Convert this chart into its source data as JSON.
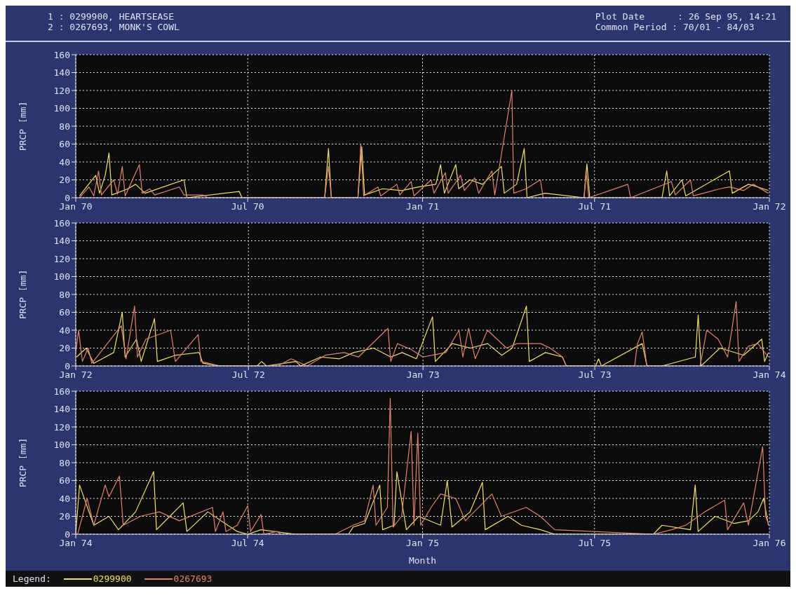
{
  "chart_data": [
    {
      "type": "line",
      "annotations": [
        "1 : 0299900, HEARTSEASE",
        "2 : 0267693, MONK'S COWL",
        "Plot Date      : 26 Sep 95, 14:21",
        "Common Period : 70/01 - 84/03"
      ],
      "ylabel": "PRCP [mm]",
      "ylim": [
        0,
        160
      ],
      "yticks": [
        0,
        20,
        40,
        60,
        80,
        100,
        120,
        140,
        160
      ],
      "xlim": [
        "1970-01-01",
        "1972-01-01"
      ],
      "xticks": [
        {
          "value": "1970-01-01",
          "label": "Jan 70"
        },
        {
          "value": "1970-07-01",
          "label": "Jul 70"
        },
        {
          "value": "1971-01-01",
          "label": "Jan 71"
        },
        {
          "value": "1971-07-01",
          "label": "Jul 71"
        },
        {
          "value": "1972-01-01",
          "label": "Jan 72"
        }
      ],
      "grid": true,
      "marker": "none",
      "line_style": "solid",
      "series": [
        {
          "color": "#f2e35a",
          "x": [
            "1970-01-05",
            "1970-01-22",
            "1970-01-26",
            "1970-02-01",
            "1970-02-05",
            "1970-02-08",
            "1970-02-25",
            "1970-03-05",
            "1970-03-15",
            "1970-04-25",
            "1970-04-28",
            "1970-06-22",
            "1970-06-25",
            "1970-09-20",
            "1970-09-24",
            "1970-09-27",
            "1970-10-25",
            "1970-10-29",
            "1970-11-01",
            "1970-11-20",
            "1970-12-10",
            "1970-12-28",
            "1971-01-15",
            "1971-01-20",
            "1971-01-24",
            "1971-02-05",
            "1971-02-08",
            "1971-02-20",
            "1971-03-05",
            "1971-03-25",
            "1971-03-28",
            "1971-04-10",
            "1971-04-18",
            "1971-04-21",
            "1971-05-10",
            "1971-06-20",
            "1971-06-23",
            "1971-06-26",
            "1971-09-10",
            "1971-09-15",
            "1971-09-18",
            "1971-10-01",
            "1971-10-05",
            "1971-11-20",
            "1971-11-23",
            "1971-12-10",
            "1971-12-20",
            "1971-12-31"
          ],
          "values": [
            2,
            25,
            5,
            25,
            50,
            3,
            10,
            15,
            5,
            20,
            0,
            7,
            0,
            0,
            55,
            0,
            0,
            57,
            3,
            10,
            8,
            12,
            15,
            37,
            5,
            37,
            10,
            20,
            15,
            35,
            5,
            15,
            55,
            0,
            5,
            0,
            38,
            0,
            0,
            30,
            2,
            20,
            2,
            30,
            5,
            15,
            12,
            8
          ]
        },
        {
          "color": "#e8806a",
          "x": [
            "1970-01-05",
            "1970-01-15",
            "1970-01-20",
            "1970-01-25",
            "1970-01-28",
            "1970-02-10",
            "1970-02-14",
            "1970-02-19",
            "1970-02-22",
            "1970-03-09",
            "1970-03-12",
            "1970-03-20",
            "1970-03-25",
            "1970-04-20",
            "1970-04-25",
            "1970-05-15",
            "1970-05-20",
            "1970-09-20",
            "1970-09-24",
            "1970-09-27",
            "1970-10-25",
            "1970-10-28",
            "1970-10-31",
            "1970-11-15",
            "1970-11-18",
            "1970-12-05",
            "1970-12-08",
            "1970-12-20",
            "1970-12-23",
            "1971-01-10",
            "1971-01-13",
            "1971-01-25",
            "1971-01-28",
            "1971-02-10",
            "1971-02-14",
            "1971-02-25",
            "1971-03-01",
            "1971-03-15",
            "1971-03-18",
            "1971-04-05",
            "1971-04-07",
            "1971-04-20",
            "1971-05-05",
            "1971-05-08",
            "1971-06-20",
            "1971-06-22",
            "1971-06-25",
            "1971-08-05",
            "1971-08-08",
            "1971-09-20",
            "1971-09-24",
            "1971-10-10",
            "1971-10-13",
            "1971-11-10",
            "1971-11-20",
            "1971-12-05",
            "1971-12-15",
            "1971-12-31"
          ],
          "values": [
            0,
            12,
            2,
            30,
            3,
            20,
            4,
            35,
            2,
            37,
            5,
            10,
            3,
            12,
            3,
            3,
            0,
            0,
            35,
            0,
            0,
            60,
            2,
            12,
            2,
            15,
            3,
            18,
            2,
            20,
            5,
            28,
            5,
            25,
            8,
            22,
            5,
            30,
            3,
            120,
            5,
            10,
            20,
            0,
            0,
            30,
            0,
            15,
            0,
            18,
            3,
            20,
            2,
            10,
            12,
            8,
            15,
            5
          ]
        }
      ]
    },
    {
      "type": "line",
      "ylabel": "PRCP [mm]",
      "ylim": [
        0,
        160
      ],
      "yticks": [
        0,
        20,
        40,
        60,
        80,
        100,
        120,
        140,
        160
      ],
      "xlim": [
        "1972-01-01",
        "1974-01-01"
      ],
      "xticks": [
        {
          "value": "1972-01-01",
          "label": "Jan 72"
        },
        {
          "value": "1972-07-01",
          "label": "Jul 72"
        },
        {
          "value": "1973-01-01",
          "label": "Jan 73"
        },
        {
          "value": "1973-07-01",
          "label": "Jul 73"
        },
        {
          "value": "1974-01-01",
          "label": "Jan 74"
        }
      ],
      "grid": true,
      "marker": "none",
      "line_style": "solid",
      "series": [
        {
          "color": "#f2e35a",
          "x": [
            "1972-01-02",
            "1972-01-12",
            "1972-01-20",
            "1972-02-10",
            "1972-02-19",
            "1972-02-22",
            "1972-03-05",
            "1972-03-10",
            "1972-03-24",
            "1972-03-27",
            "1972-04-15",
            "1972-05-10",
            "1972-05-14",
            "1972-06-01",
            "1972-07-10",
            "1972-07-15",
            "1972-07-20",
            "1972-08-20",
            "1972-08-25",
            "1972-09-15",
            "1972-10-05",
            "1972-10-20",
            "1972-11-10",
            "1972-11-28",
            "1972-12-10",
            "1972-12-25",
            "1973-01-11",
            "1973-01-14",
            "1973-02-01",
            "1973-02-20",
            "1973-03-10",
            "1973-03-25",
            "1973-04-05",
            "1973-04-20",
            "1973-04-23",
            "1973-05-10",
            "1973-05-28",
            "1973-06-01",
            "1973-07-02",
            "1973-07-05",
            "1973-07-08",
            "1973-08-20",
            "1973-08-25",
            "1973-09-10",
            "1973-10-15",
            "1973-10-18",
            "1973-10-21",
            "1973-11-10",
            "1973-12-05",
            "1973-12-24",
            "1973-12-27",
            "1973-12-31"
          ],
          "values": [
            10,
            20,
            3,
            15,
            60,
            10,
            30,
            5,
            53,
            5,
            12,
            15,
            3,
            0,
            0,
            5,
            0,
            5,
            0,
            10,
            8,
            15,
            20,
            10,
            15,
            8,
            55,
            5,
            25,
            20,
            25,
            12,
            20,
            67,
            5,
            15,
            10,
            0,
            0,
            8,
            0,
            25,
            0,
            0,
            10,
            57,
            0,
            20,
            12,
            30,
            5,
            15
          ]
        },
        {
          "color": "#e8806a",
          "x": [
            "1972-01-01",
            "1972-01-04",
            "1972-01-08",
            "1972-01-14",
            "1972-01-18",
            "1972-02-18",
            "1972-02-23",
            "1972-03-03",
            "1972-03-06",
            "1972-03-15",
            "1972-04-05",
            "1972-04-10",
            "1972-04-15",
            "1972-05-09",
            "1972-05-12",
            "1972-06-01",
            "1972-08-01",
            "1972-08-15",
            "1972-09-01",
            "1972-09-20",
            "1972-10-10",
            "1972-10-25",
            "1972-11-25",
            "1972-11-28",
            "1972-12-05",
            "1972-12-20",
            "1973-01-01",
            "1973-01-25",
            "1973-02-08",
            "1973-02-12",
            "1973-02-18",
            "1973-02-25",
            "1973-03-10",
            "1973-03-30",
            "1973-04-10",
            "1973-05-05",
            "1973-05-15",
            "1973-05-28",
            "1973-06-01",
            "1973-08-12",
            "1973-08-15",
            "1973-08-20",
            "1973-08-25",
            "1973-10-20",
            "1973-10-27",
            "1973-11-08",
            "1973-11-18",
            "1973-11-27",
            "1973-11-30",
            "1973-12-10",
            "1973-12-20",
            "1973-12-31"
          ],
          "values": [
            15,
            40,
            5,
            20,
            3,
            45,
            8,
            67,
            10,
            30,
            38,
            40,
            5,
            35,
            5,
            0,
            0,
            8,
            0,
            12,
            15,
            10,
            42,
            5,
            25,
            18,
            10,
            15,
            40,
            10,
            42,
            8,
            40,
            20,
            25,
            25,
            20,
            10,
            0,
            0,
            25,
            38,
            0,
            0,
            40,
            30,
            10,
            72,
            5,
            22,
            25,
            10
          ]
        }
      ]
    },
    {
      "type": "line",
      "xlabel": "Month",
      "ylabel": "PRCP [mm]",
      "legend": "bottom left",
      "legend_title": "Legend:",
      "ylim": [
        0,
        160
      ],
      "yticks": [
        0,
        20,
        40,
        60,
        80,
        100,
        120,
        140,
        160
      ],
      "xlim": [
        "1974-01-01",
        "1976-01-01"
      ],
      "xticks": [
        {
          "value": "1974-01-01",
          "label": "Jan 74"
        },
        {
          "value": "1974-07-01",
          "label": "Jul 74"
        },
        {
          "value": "1975-01-01",
          "label": "Jan 75"
        },
        {
          "value": "1975-07-01",
          "label": "Jul 75"
        },
        {
          "value": "1976-01-01",
          "label": "Jan 76"
        }
      ],
      "grid": true,
      "marker": "none",
      "line_style": "solid",
      "series": [
        {
          "name": "0299900",
          "color": "#f2e35a",
          "x": [
            "1974-01-01",
            "1974-01-05",
            "1974-01-20",
            "1974-02-05",
            "1974-02-15",
            "1974-03-05",
            "1974-03-24",
            "1974-03-27",
            "1974-04-10",
            "1974-04-24",
            "1974-04-28",
            "1974-05-20",
            "1974-06-10",
            "1974-06-20",
            "1974-07-01",
            "1974-07-15",
            "1974-08-20",
            "1974-09-01",
            "1974-10-15",
            "1974-10-20",
            "1974-11-01",
            "1974-11-17",
            "1974-11-20",
            "1974-12-02",
            "1974-12-05",
            "1974-12-15",
            "1974-12-28",
            "1975-01-20",
            "1975-01-27",
            "1975-02-01",
            "1975-02-20",
            "1975-03-05",
            "1975-03-08",
            "1975-04-01",
            "1975-04-15",
            "1975-05-05",
            "1975-05-20",
            "1975-06-01",
            "1975-09-01",
            "1975-09-10",
            "1975-10-10",
            "1975-10-15",
            "1975-10-18",
            "1975-11-05",
            "1975-11-25",
            "1975-12-10",
            "1975-12-20",
            "1975-12-26",
            "1975-12-31"
          ],
          "values": [
            0,
            55,
            10,
            20,
            5,
            25,
            70,
            5,
            20,
            35,
            3,
            25,
            10,
            3,
            0,
            5,
            0,
            0,
            0,
            8,
            12,
            55,
            5,
            10,
            70,
            5,
            20,
            10,
            60,
            8,
            25,
            58,
            5,
            20,
            10,
            5,
            0,
            0,
            0,
            10,
            5,
            55,
            3,
            20,
            12,
            15,
            25,
            40,
            10
          ]
        },
        {
          "name": "0267693",
          "color": "#e8806a",
          "x": [
            "1974-01-03",
            "1974-01-13",
            "1974-01-20",
            "1974-02-01",
            "1974-02-05",
            "1974-02-16",
            "1974-02-20",
            "1974-03-10",
            "1974-03-30",
            "1974-04-20",
            "1974-05-25",
            "1974-05-28",
            "1974-06-05",
            "1974-06-08",
            "1974-06-20",
            "1974-07-01",
            "1974-07-04",
            "1974-07-15",
            "1974-07-18",
            "1974-08-01",
            "1974-08-05",
            "1974-10-01",
            "1974-10-20",
            "1974-11-01",
            "1974-11-10",
            "1974-11-13",
            "1974-11-25",
            "1974-11-28",
            "1974-12-01",
            "1974-12-10",
            "1974-12-20",
            "1974-12-23",
            "1974-12-27",
            "1974-12-30",
            "1975-01-10",
            "1975-01-20",
            "1975-02-05",
            "1975-02-15",
            "1975-03-15",
            "1975-03-25",
            "1975-04-20",
            "1975-05-05",
            "1975-05-20",
            "1975-09-01",
            "1975-09-20",
            "1975-10-05",
            "1975-10-25",
            "1975-11-15",
            "1975-11-18",
            "1975-12-05",
            "1975-12-10",
            "1975-12-25",
            "1975-12-28",
            "1975-12-31"
          ],
          "values": [
            0,
            40,
            10,
            55,
            42,
            65,
            10,
            20,
            25,
            15,
            30,
            3,
            25,
            3,
            10,
            32,
            3,
            22,
            0,
            3,
            0,
            0,
            10,
            15,
            55,
            10,
            30,
            152,
            8,
            20,
            115,
            10,
            113,
            10,
            30,
            45,
            40,
            15,
            45,
            20,
            30,
            20,
            5,
            0,
            5,
            10,
            25,
            38,
            5,
            35,
            10,
            98,
            20,
            12
          ]
        }
      ]
    }
  ]
}
